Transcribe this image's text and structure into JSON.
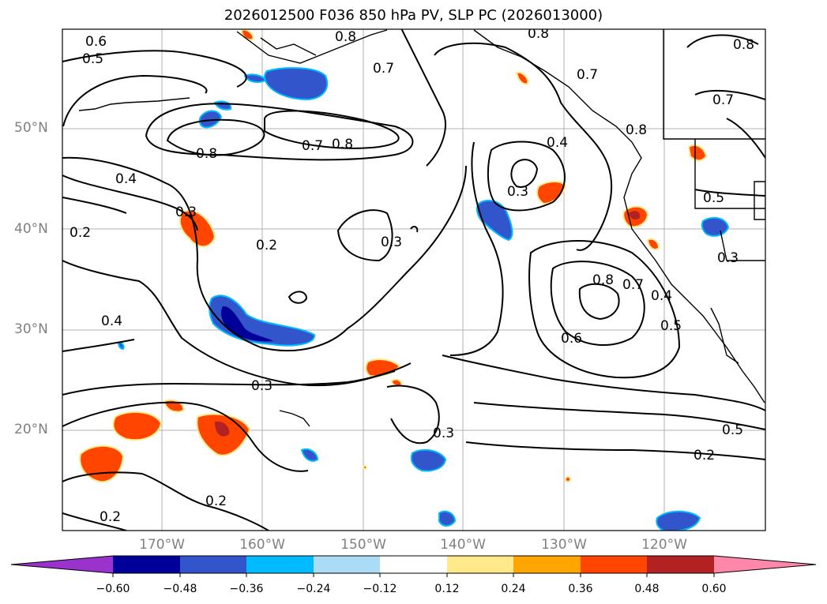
{
  "title": "2026012500 F036 850 hPa PV, SLP PC (2026013000)",
  "lat_labels": [
    "50°N",
    "40°N",
    "30°N",
    "20°N"
  ],
  "lon_labels": [
    "170°W",
    "160°W",
    "150°W",
    "140°W",
    "130°W",
    "120°W"
  ],
  "colorbar": {
    "ticks": [
      "−0.60",
      "−0.48",
      "−0.36",
      "−0.24",
      "−0.12",
      "0.12",
      "0.24",
      "0.36",
      "0.48",
      "0.60"
    ],
    "colors": [
      "#9933cc",
      "#000099",
      "#3355cc",
      "#00bbff",
      "#aaddf5",
      "#ffffff",
      "#ffe98a",
      "#ffa500",
      "#ff4500",
      "#b22222",
      "#ff88aa"
    ]
  },
  "contour_labels": [
    "0.6",
    "0.5",
    "0.8",
    "0.7",
    "0.8",
    "0.7",
    "0.8",
    "0.8",
    "0.8",
    "0.7",
    "0.7",
    "0.8",
    "0.4",
    "0.4",
    "0.3",
    "0.3",
    "0.5",
    "0.2",
    "0.2",
    "0.3",
    "0.8",
    "0.7",
    "0.4",
    "0.5",
    "0.3",
    "0.4",
    "0.6",
    "0.3",
    "0.3",
    "0.5",
    "0.2",
    "0.2",
    "0.2"
  ]
}
